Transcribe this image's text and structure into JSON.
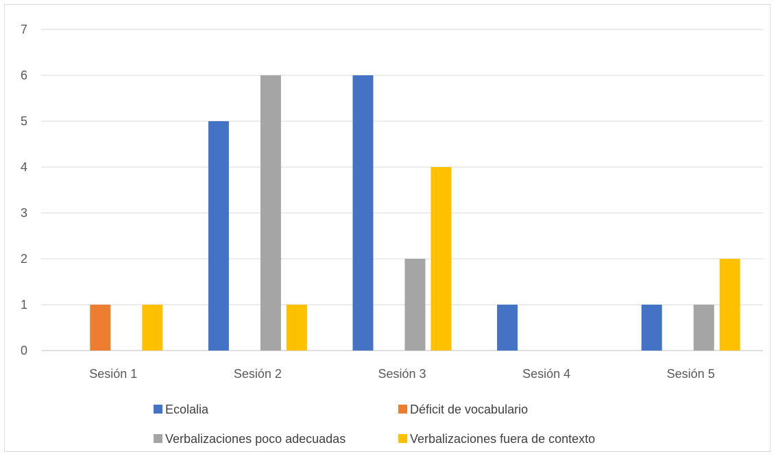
{
  "chart_data": {
    "type": "bar",
    "categories": [
      "Sesión 1",
      "Sesión 2",
      "Sesión 3",
      "Sesión 4",
      "Sesión 5"
    ],
    "series": [
      {
        "name": "Ecolalia",
        "color": "#4472C4",
        "values": [
          0,
          5,
          6,
          1,
          1
        ]
      },
      {
        "name": "Déficit de vocabulario",
        "color": "#ED7D31",
        "values": [
          1,
          0,
          0,
          0,
          0
        ]
      },
      {
        "name": "Verbalizaciones poco adecuadas",
        "color": "#A5A5A5",
        "values": [
          0,
          6,
          2,
          0,
          1
        ]
      },
      {
        "name": "Verbalizaciones fuera de contexto",
        "color": "#FFC000",
        "values": [
          1,
          1,
          4,
          0,
          2
        ]
      }
    ],
    "y_ticks": [
      "0",
      "1",
      "2",
      "3",
      "4",
      "5",
      "6",
      "7"
    ],
    "ylim": [
      0,
      7
    ],
    "grid": true,
    "legend_position": "bottom"
  }
}
